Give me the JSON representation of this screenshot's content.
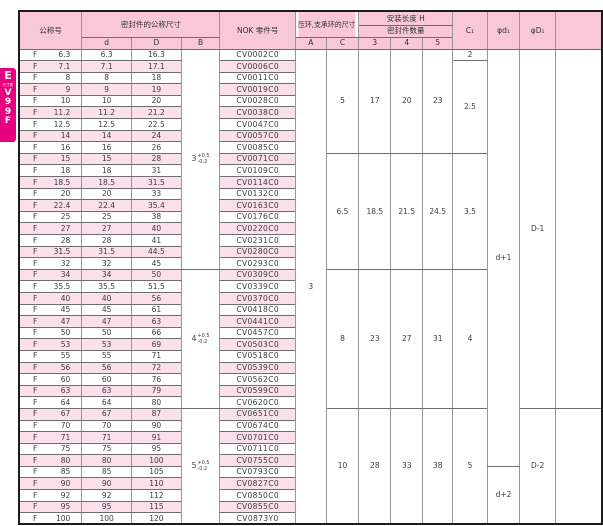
{
  "tab": {
    "letter": "E",
    "small_label": "尺寸表",
    "code": "V\n9\n9\nF",
    "color": "#e60080"
  },
  "colors": {
    "header_pink": "#f8c8d9",
    "stripe_pink": "#fbdfeb",
    "tab_magenta": "#e60080"
  },
  "header": {
    "nominal": "公称号",
    "seal_dims": "密封件的公称尺寸",
    "d": "d",
    "D": "D",
    "B": "B",
    "nok": "NOK 零件号",
    "ring_dims": "压环,支承环的尺寸",
    "A": "A",
    "C": "C",
    "install_length": "安装长度 H",
    "seal_qty": "密封件数量",
    "q3": "3",
    "q4": "4",
    "q5": "5",
    "c1": "C₁",
    "phi_d1": "φd₁",
    "phi_D1": "φD₁",
    "end": ""
  },
  "table": {
    "rows": [
      {
        "f": "F",
        "size": "6.3",
        "d": "6.3",
        "D": "16.3",
        "part": "CV0002C0"
      },
      {
        "f": "F",
        "size": "7.1",
        "d": "7.1",
        "D": "17.1",
        "part": "CV0006C0"
      },
      {
        "f": "F",
        "size": "8",
        "d": "8",
        "D": "18",
        "part": "CV0011C0"
      },
      {
        "f": "F",
        "size": "9",
        "d": "9",
        "D": "19",
        "part": "CV0019C0"
      },
      {
        "f": "F",
        "size": "10",
        "d": "10",
        "D": "20",
        "part": "CV0028C0"
      },
      {
        "f": "F",
        "size": "11.2",
        "d": "11.2",
        "D": "21.2",
        "part": "CV0038C0"
      },
      {
        "f": "F",
        "size": "12.5",
        "d": "12.5",
        "D": "22.5",
        "part": "CV0047C0"
      },
      {
        "f": "F",
        "size": "14",
        "d": "14",
        "D": "24",
        "part": "CV0057C0"
      },
      {
        "f": "F",
        "size": "16",
        "d": "16",
        "D": "26",
        "part": "CV0085C0"
      },
      {
        "f": "F",
        "size": "15",
        "d": "15",
        "D": "28",
        "part": "CV0071C0"
      },
      {
        "f": "F",
        "size": "18",
        "d": "18",
        "D": "31",
        "part": "CV0109C0"
      },
      {
        "f": "F",
        "size": "18.5",
        "d": "18.5",
        "D": "31.5",
        "part": "CV0114C0"
      },
      {
        "f": "F",
        "size": "20",
        "d": "20",
        "D": "33",
        "part": "CV0132C0"
      },
      {
        "f": "F",
        "size": "22.4",
        "d": "22.4",
        "D": "35.4",
        "part": "CV0163C0"
      },
      {
        "f": "F",
        "size": "25",
        "d": "25",
        "D": "38",
        "part": "CV0176C0"
      },
      {
        "f": "F",
        "size": "27",
        "d": "27",
        "D": "40",
        "part": "CV0220C0"
      },
      {
        "f": "F",
        "size": "28",
        "d": "28",
        "D": "41",
        "part": "CV0231C0"
      },
      {
        "f": "F",
        "size": "31.5",
        "d": "31.5",
        "D": "44.5",
        "part": "CV0280C0"
      },
      {
        "f": "F",
        "size": "32",
        "d": "32",
        "D": "45",
        "part": "CV0293C0"
      },
      {
        "f": "F",
        "size": "34",
        "d": "34",
        "D": "50",
        "part": "CV0309C0"
      },
      {
        "f": "F",
        "size": "35.5",
        "d": "35.5",
        "D": "51.5",
        "part": "CV0339C0"
      },
      {
        "f": "F",
        "size": "40",
        "d": "40",
        "D": "56",
        "part": "CV0370C0"
      },
      {
        "f": "F",
        "size": "45",
        "d": "45",
        "D": "61",
        "part": "CV0418C0"
      },
      {
        "f": "F",
        "size": "47",
        "d": "47",
        "D": "63",
        "part": "CV0441C0"
      },
      {
        "f": "F",
        "size": "50",
        "d": "50",
        "D": "66",
        "part": "CV0457C0"
      },
      {
        "f": "F",
        "size": "53",
        "d": "53",
        "D": "69",
        "part": "CV0503C0"
      },
      {
        "f": "F",
        "size": "55",
        "d": "55",
        "D": "71",
        "part": "CV0518C0"
      },
      {
        "f": "F",
        "size": "56",
        "d": "56",
        "D": "72",
        "part": "CV0539C0"
      },
      {
        "f": "F",
        "size": "60",
        "d": "60",
        "D": "76",
        "part": "CV0562C0"
      },
      {
        "f": "F",
        "size": "63",
        "d": "63",
        "D": "79",
        "part": "CV0599C0"
      },
      {
        "f": "F",
        "size": "64",
        "d": "64",
        "D": "80",
        "part": "CV0620C0"
      },
      {
        "f": "F",
        "size": "67",
        "d": "67",
        "D": "87",
        "part": "CV0651C0"
      },
      {
        "f": "F",
        "size": "70",
        "d": "70",
        "D": "90",
        "part": "CV0674C0"
      },
      {
        "f": "F",
        "size": "71",
        "d": "71",
        "D": "91",
        "part": "CV0701C0"
      },
      {
        "f": "F",
        "size": "75",
        "d": "75",
        "D": "95",
        "part": "CV0711C0"
      },
      {
        "f": "F",
        "size": "80",
        "d": "80",
        "D": "100",
        "part": "CV0755C0"
      },
      {
        "f": "F",
        "size": "85",
        "d": "85",
        "D": "105",
        "part": "CV0793C0"
      },
      {
        "f": "F",
        "size": "90",
        "d": "90",
        "D": "110",
        "part": "CV0827C0"
      },
      {
        "f": "F",
        "size": "92",
        "d": "92",
        "D": "112",
        "part": "CV0850C0"
      },
      {
        "f": "F",
        "size": "95",
        "d": "95",
        "D": "115",
        "part": "CV0855C0"
      },
      {
        "f": "F",
        "size": "100",
        "d": "100",
        "D": "120",
        "part": "CV0873Y0"
      }
    ],
    "b_column": [
      {
        "start": 1,
        "span": 19,
        "main": "3",
        "plus": "+0.5",
        "minus": "-0.2"
      },
      {
        "start": 20,
        "span": 12,
        "main": "4",
        "plus": "+0.5",
        "minus": "-0.2"
      },
      {
        "start": 32,
        "span": 10,
        "main": "5",
        "plus": "+0.5",
        "minus": "-0.2"
      }
    ],
    "a_column": [
      {
        "start": 1,
        "span": 41,
        "value": "3"
      }
    ],
    "ch_groups": [
      {
        "start": 1,
        "span": 9,
        "C": "5",
        "h3": "17",
        "h4": "20",
        "h5": "23"
      },
      {
        "start": 10,
        "span": 10,
        "C": "6.5",
        "h3": "18.5",
        "h4": "21.5",
        "h5": "24.5"
      },
      {
        "start": 20,
        "span": 12,
        "C": "8",
        "h3": "23",
        "h4": "27",
        "h5": "31"
      },
      {
        "start": 32,
        "span": 10,
        "C": "10",
        "h3": "28",
        "h4": "33",
        "h5": "38"
      }
    ],
    "c1_column": [
      {
        "start": 1,
        "span": 1,
        "value": "2"
      },
      {
        "start": 2,
        "span": 8,
        "value": "2.5"
      },
      {
        "start": 10,
        "span": 10,
        "value": "3.5"
      },
      {
        "start": 20,
        "span": 12,
        "value": "4"
      },
      {
        "start": 32,
        "span": 10,
        "value": "5"
      }
    ],
    "phi_d1_column": [
      {
        "start": 1,
        "span": 36,
        "value": "d+1"
      },
      {
        "start": 37,
        "span": 5,
        "value": "d+2"
      }
    ],
    "phi_D1_column": [
      {
        "start": 1,
        "span": 31,
        "value": "D-1"
      },
      {
        "start": 32,
        "span": 10,
        "value": "D-2"
      }
    ],
    "end_column": [
      {
        "start": 1,
        "span": 31,
        "value": ""
      },
      {
        "start": 32,
        "span": 10,
        "value": ""
      }
    ]
  }
}
